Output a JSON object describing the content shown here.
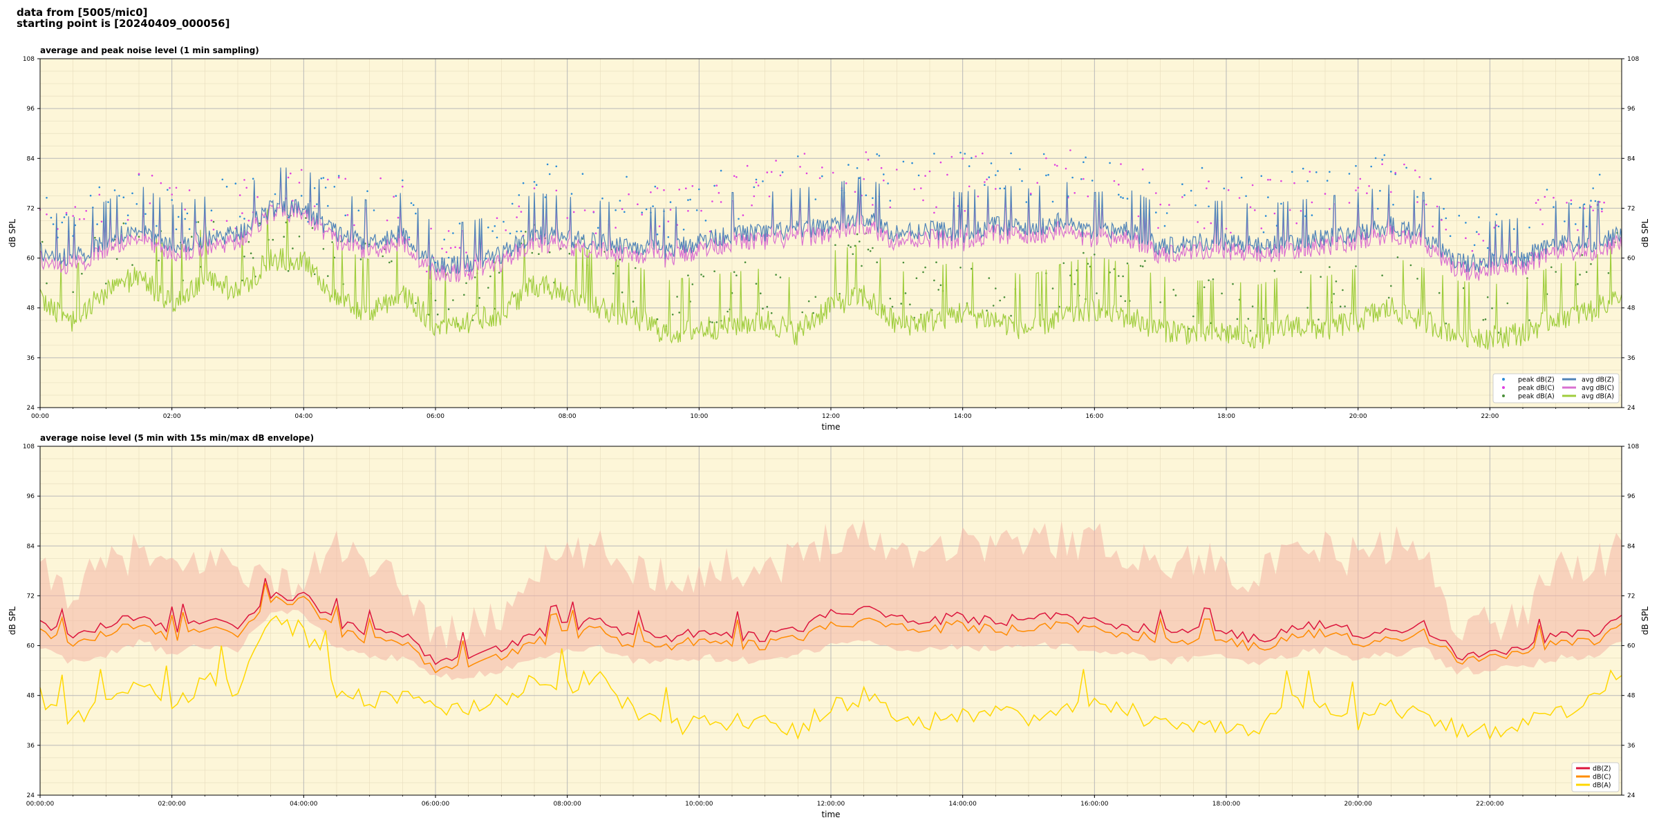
{
  "header": {
    "line1": "data from [5005/mic0]",
    "line2": "starting point is [20240409_000056]"
  },
  "colors": {
    "plot_bg": "#fdf6d8",
    "peak_z": "#2b8cd6",
    "peak_c": "#e040e0",
    "peak_a": "#4a8f3a",
    "avg_z": "#4f83b8",
    "avg_c": "#d970d0",
    "avg_a": "#9fcd3c",
    "db_z": "#dc143c",
    "db_c": "#ff8c00",
    "db_a": "#ffd700",
    "envelope": "#f4b5a5"
  },
  "chart_data": [
    {
      "type": "line",
      "title": "average and peak noise level (1 min sampling)",
      "xlabel": "time",
      "ylabel": "dB SPL",
      "ylabel_right": "dB SPL",
      "xlim_hours": [
        0,
        24
      ],
      "ylim": [
        24,
        108
      ],
      "y_ticks": [
        24,
        36,
        48,
        60,
        72,
        84,
        96,
        108
      ],
      "x_ticks": [
        "00:00",
        "02:00",
        "04:00",
        "06:00",
        "08:00",
        "10:00",
        "12:00",
        "14:00",
        "16:00",
        "18:00",
        "20:00",
        "22:00"
      ],
      "grid": true,
      "legend_position": "lower-right",
      "legend": [
        "peak dB(Z)",
        "peak dB(C)",
        "peak dB(A)",
        "avg dB(Z)",
        "avg dB(C)",
        "avg dB(A)"
      ],
      "x_hours": [
        0,
        0.5,
        1,
        1.5,
        2,
        2.5,
        3,
        3.5,
        4,
        4.5,
        5,
        5.5,
        6,
        6.5,
        7,
        7.5,
        8,
        8.5,
        9,
        9.5,
        10,
        10.5,
        11,
        11.5,
        12,
        12.5,
        13,
        13.5,
        14,
        14.5,
        15,
        15.5,
        16,
        16.5,
        17,
        17.5,
        18,
        18.5,
        19,
        19.5,
        20,
        20.5,
        21,
        21.5,
        22,
        22.5,
        23,
        23.5,
        24
      ],
      "series": [
        {
          "name": "avg dB(Z)",
          "values": [
            62,
            60,
            64,
            68,
            63,
            65,
            66,
            72,
            72,
            66,
            64,
            66,
            58,
            59,
            61,
            66,
            65,
            64,
            63,
            62,
            64,
            66,
            66,
            67,
            68,
            70,
            66,
            67,
            66,
            68,
            67,
            69,
            66,
            67,
            63,
            64,
            64,
            63,
            64,
            65,
            66,
            68,
            66,
            59,
            59,
            60,
            64,
            63,
            66
          ]
        },
        {
          "name": "avg dB(C)",
          "values": [
            60,
            58,
            62,
            66,
            61,
            63,
            64,
            71,
            71,
            64,
            62,
            64,
            56,
            57,
            59,
            64,
            63,
            62,
            61,
            60,
            62,
            64,
            64,
            65,
            66,
            68,
            64,
            65,
            64,
            66,
            65,
            67,
            64,
            65,
            61,
            62,
            62,
            61,
            62,
            63,
            64,
            66,
            64,
            57,
            57,
            58,
            62,
            61,
            64
          ]
        },
        {
          "name": "avg dB(A)",
          "values": [
            50,
            45,
            52,
            56,
            49,
            55,
            52,
            60,
            60,
            50,
            47,
            52,
            44,
            45,
            47,
            54,
            52,
            48,
            46,
            42,
            43,
            44,
            45,
            42,
            49,
            51,
            44,
            45,
            47,
            45,
            43,
            46,
            48,
            46,
            43,
            42,
            42,
            41,
            44,
            43,
            45,
            48,
            45,
            42,
            41,
            42,
            46,
            47,
            52
          ]
        },
        {
          "name": "peak dB(Z)",
          "values": [
            68,
            66,
            70,
            74,
            69,
            72,
            72,
            73,
            73,
            72,
            71,
            70,
            60,
            61,
            63,
            74,
            72,
            71,
            70,
            68,
            70,
            73,
            74,
            76,
            78,
            78,
            75,
            76,
            76,
            77,
            76,
            78,
            76,
            75,
            71,
            73,
            71,
            70,
            72,
            73,
            73,
            76,
            73,
            61,
            61,
            62,
            71,
            71,
            70
          ]
        },
        {
          "name": "peak dB(C)",
          "values": [
            67,
            65,
            69,
            73,
            68,
            71,
            71,
            72,
            72,
            71,
            70,
            69,
            58,
            59,
            61,
            73,
            71,
            70,
            69,
            67,
            69,
            72,
            73,
            75,
            77,
            77,
            74,
            75,
            75,
            76,
            75,
            77,
            75,
            74,
            70,
            72,
            70,
            69,
            71,
            72,
            72,
            75,
            72,
            59,
            59,
            60,
            70,
            70,
            69
          ]
        },
        {
          "name": "peak dB(A)",
          "values": [
            56,
            52,
            58,
            62,
            55,
            60,
            57,
            61,
            61,
            56,
            54,
            57,
            47,
            48,
            50,
            59,
            57,
            54,
            52,
            47,
            48,
            49,
            50,
            47,
            55,
            57,
            49,
            50,
            52,
            50,
            48,
            51,
            54,
            52,
            48,
            47,
            47,
            46,
            49,
            48,
            50,
            53,
            50,
            45,
            44,
            45,
            52,
            52,
            57
          ]
        }
      ]
    },
    {
      "type": "line",
      "title": "average noise level (5 min with 15s min/max dB envelope)",
      "xlabel": "time",
      "ylabel": "dB SPL",
      "ylabel_right": "dB SPL",
      "xlim_hours": [
        0,
        24
      ],
      "ylim": [
        24,
        108
      ],
      "y_ticks": [
        24,
        36,
        48,
        60,
        72,
        84,
        96,
        108
      ],
      "x_ticks": [
        "00:00:00",
        "02:00:00",
        "04:00:00",
        "06:00:00",
        "08:00:00",
        "10:00:00",
        "12:00:00",
        "14:00:00",
        "16:00:00",
        "18:00:00",
        "20:00:00",
        "22:00:00"
      ],
      "grid": true,
      "legend_position": "lower-right",
      "legend": [
        "dB(Z)",
        "dB(C)",
        "dB(A)"
      ],
      "x_hours": [
        0,
        0.5,
        1,
        1.5,
        2,
        2.5,
        3,
        3.5,
        4,
        4.5,
        5,
        5.5,
        6,
        6.5,
        7,
        7.5,
        8,
        8.5,
        9,
        9.5,
        10,
        10.5,
        11,
        11.5,
        12,
        12.5,
        13,
        13.5,
        14,
        14.5,
        15,
        15.5,
        16,
        16.5,
        17,
        17.5,
        18,
        18.5,
        19,
        19.5,
        20,
        20.5,
        21,
        21.5,
        22,
        22.5,
        23,
        23.5,
        24
      ],
      "series": [
        {
          "name": "dB(Z)",
          "values": [
            66,
            62,
            65,
            67,
            64,
            66,
            65,
            72,
            72,
            66,
            63,
            63,
            57,
            58,
            59,
            63,
            65,
            66,
            63,
            62,
            63,
            63,
            62,
            64,
            68,
            69,
            66,
            66,
            67,
            66,
            67,
            67,
            66,
            65,
            63,
            64,
            63,
            62,
            64,
            65,
            63,
            64,
            65,
            58,
            58,
            59,
            63,
            63,
            67
          ]
        },
        {
          "name": "dB(C)",
          "values": [
            64,
            60,
            63,
            65,
            62,
            64,
            63,
            71,
            71,
            64,
            61,
            61,
            55,
            56,
            57,
            61,
            63,
            64,
            60,
            60,
            61,
            61,
            60,
            62,
            65,
            66,
            64,
            64,
            65,
            64,
            64,
            65,
            64,
            63,
            61,
            61,
            61,
            60,
            62,
            63,
            61,
            62,
            63,
            57,
            57,
            58,
            61,
            61,
            65
          ]
        },
        {
          "name": "dB(A)",
          "values": [
            48,
            42,
            46,
            52,
            45,
            52,
            50,
            66,
            64,
            50,
            47,
            48,
            44,
            45,
            47,
            52,
            50,
            54,
            44,
            41,
            41,
            42,
            42,
            40,
            45,
            48,
            44,
            42,
            44,
            44,
            43,
            44,
            46,
            45,
            41,
            41,
            41,
            40,
            46,
            44,
            42,
            46,
            42,
            40,
            40,
            41,
            44,
            46,
            55
          ]
        },
        {
          "name": "min envelope",
          "values": [
            60,
            57,
            59,
            62,
            59,
            61,
            60,
            69,
            69,
            60,
            58,
            58,
            53,
            54,
            55,
            58,
            60,
            61,
            57,
            57,
            58,
            58,
            57,
            59,
            61,
            62,
            60,
            60,
            61,
            60,
            61,
            61,
            60,
            59,
            57,
            58,
            58,
            57,
            59,
            60,
            58,
            59,
            60,
            55,
            55,
            56,
            58,
            58,
            62
          ]
        },
        {
          "name": "max envelope",
          "values": [
            76,
            72,
            78,
            82,
            76,
            80,
            79,
            74,
            74,
            84,
            76,
            74,
            62,
            63,
            66,
            78,
            80,
            82,
            78,
            76,
            76,
            78,
            78,
            80,
            86,
            86,
            82,
            83,
            84,
            84,
            84,
            85,
            84,
            82,
            78,
            80,
            78,
            76,
            80,
            82,
            80,
            84,
            80,
            65,
            64,
            66,
            80,
            78,
            82
          ]
        }
      ]
    }
  ]
}
